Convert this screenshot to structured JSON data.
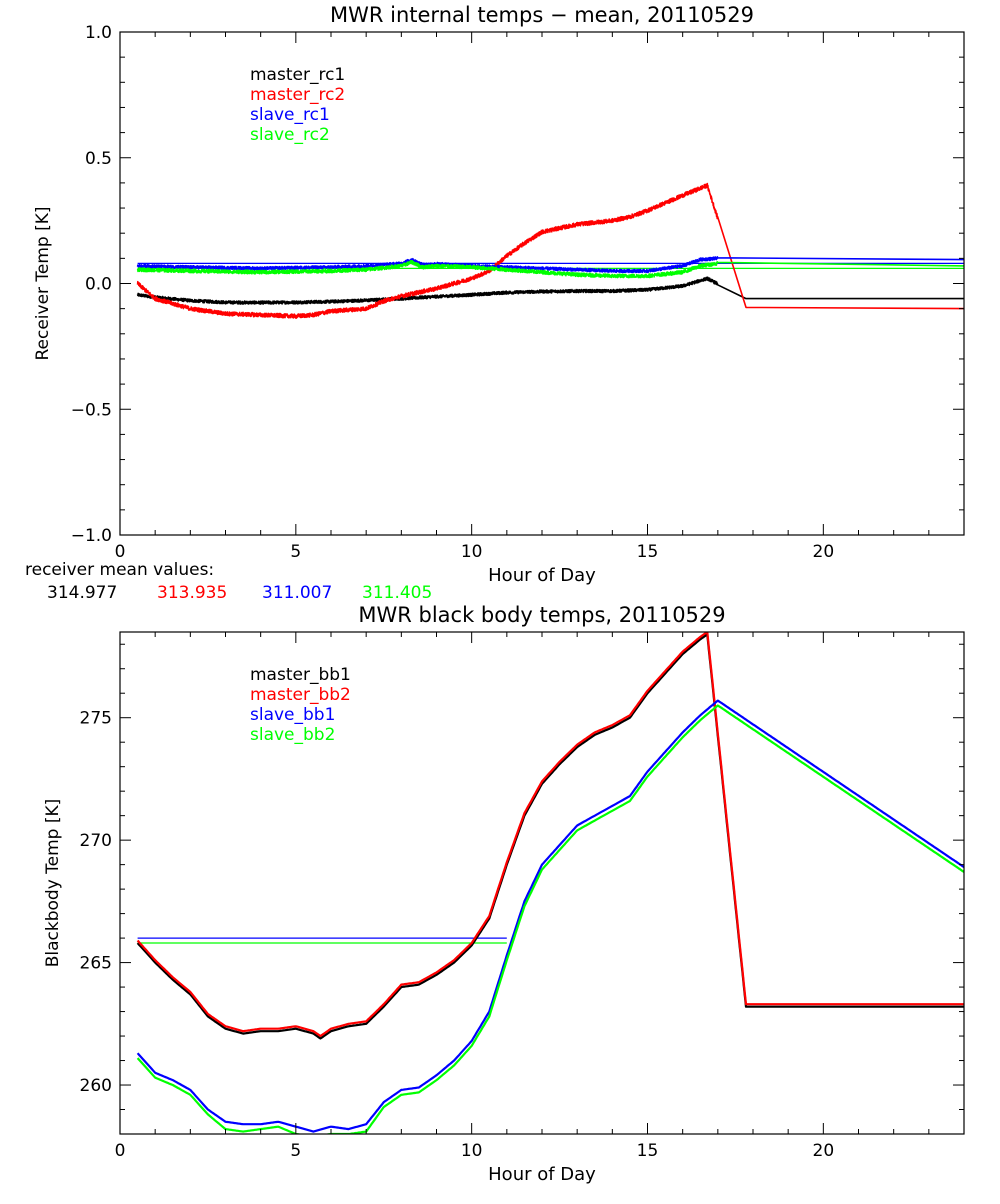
{
  "chart_data": [
    {
      "type": "line",
      "title": "MWR internal temps − mean, 20110529",
      "xlabel": "Hour of Day",
      "ylabel": "Receiver Temp [K]",
      "xlim": [
        0,
        24
      ],
      "ylim": [
        -1.0,
        1.0
      ],
      "xticks": [
        0,
        5,
        10,
        15,
        20
      ],
      "xtick_labels": [
        "0",
        "5",
        "10",
        "15",
        "20"
      ],
      "yticks": [
        -1.0,
        -0.5,
        0.0,
        0.5,
        1.0
      ],
      "ytick_labels": [
        "−1.0",
        "−0.5",
        "0.0",
        "0.5",
        "1.0"
      ],
      "legend_position": "top-left",
      "series": [
        {
          "name": "master_rc1",
          "color": "#000000",
          "noise": 0.006,
          "x": [
            0.5,
            1.0,
            2.0,
            3.0,
            4.0,
            5.0,
            6.0,
            7.0,
            8.0,
            9.0,
            10.0,
            11.0,
            12.0,
            13.0,
            14.0,
            15.0,
            16.0,
            16.7,
            17.8,
            24.0
          ],
          "y": [
            -0.045,
            -0.055,
            -0.068,
            -0.075,
            -0.076,
            -0.075,
            -0.072,
            -0.067,
            -0.06,
            -0.052,
            -0.045,
            -0.036,
            -0.032,
            -0.03,
            -0.03,
            -0.025,
            -0.01,
            0.02,
            -0.06,
            -0.06
          ]
        },
        {
          "name": "master_rc2",
          "color": "#ff0000",
          "noise": 0.008,
          "x": [
            0.5,
            1.0,
            2.0,
            3.0,
            4.0,
            5.0,
            5.5,
            6.0,
            6.5,
            7.0,
            7.5,
            8.0,
            9.0,
            10.0,
            10.5,
            11.0,
            11.5,
            12.0,
            13.0,
            14.0,
            14.5,
            15.0,
            16.0,
            16.7,
            17.8,
            24.0
          ],
          "y": [
            0.0,
            -0.06,
            -0.1,
            -0.12,
            -0.125,
            -0.13,
            -0.125,
            -0.11,
            -0.105,
            -0.1,
            -0.07,
            -0.05,
            -0.02,
            0.02,
            0.05,
            0.11,
            0.16,
            0.205,
            0.235,
            0.25,
            0.265,
            0.29,
            0.35,
            0.39,
            -0.095,
            -0.1
          ]
        },
        {
          "name": "slave_rc1",
          "color": "#0000ff",
          "noise": 0.006,
          "x": [
            0.5,
            2.0,
            4.0,
            6.0,
            7.0,
            8.0,
            8.3,
            8.6,
            9.0,
            10.0,
            11.0,
            12.0,
            13.0,
            14.0,
            15.0,
            16.0,
            16.5,
            17.0,
            24.0
          ],
          "y": [
            0.07,
            0.065,
            0.06,
            0.065,
            0.07,
            0.08,
            0.095,
            0.075,
            0.078,
            0.07,
            0.065,
            0.06,
            0.055,
            0.05,
            0.05,
            0.07,
            0.095,
            0.1,
            0.095
          ]
        },
        {
          "name": "slave_rc2",
          "color": "#00ff00",
          "noise": 0.007,
          "x": [
            0.5,
            2.0,
            4.0,
            6.0,
            7.0,
            8.0,
            8.3,
            8.6,
            9.0,
            10.0,
            11.0,
            12.0,
            13.0,
            14.0,
            15.0,
            16.0,
            16.5,
            17.0,
            24.0
          ],
          "y": [
            0.055,
            0.05,
            0.045,
            0.05,
            0.055,
            0.07,
            0.085,
            0.065,
            0.07,
            0.065,
            0.055,
            0.045,
            0.035,
            0.03,
            0.03,
            0.045,
            0.07,
            0.08,
            0.07
          ]
        }
      ],
      "reference_lines": [
        {
          "color": "#0000ff",
          "x": [
            0.5,
            24.0
          ],
          "y": [
            0.08,
            0.08
          ]
        },
        {
          "color": "#00ff00",
          "x": [
            0.5,
            24.0
          ],
          "y": [
            0.06,
            0.06
          ]
        }
      ],
      "annotation_label": "receiver mean values:",
      "annotation_values": [
        {
          "value": "314.977",
          "color": "#000000"
        },
        {
          "value": "313.935",
          "color": "#ff0000"
        },
        {
          "value": "311.007",
          "color": "#0000ff"
        },
        {
          "value": "311.405",
          "color": "#00ff00"
        }
      ]
    },
    {
      "type": "line",
      "title": "MWR black body temps, 20110529",
      "xlabel": "Hour of Day",
      "ylabel": "Blackbody Temp [K]",
      "xlim": [
        0,
        24
      ],
      "ylim": [
        258,
        278.5
      ],
      "xticks": [
        0,
        5,
        10,
        15,
        20
      ],
      "xtick_labels": [
        "0",
        "5",
        "10",
        "15",
        "20"
      ],
      "yticks": [
        260,
        265,
        270,
        275
      ],
      "ytick_labels": [
        "260",
        "265",
        "270",
        "275"
      ],
      "legend_position": "top-left",
      "series": [
        {
          "name": "master_bb1",
          "color": "#000000",
          "noise": 0,
          "x": [
            0.5,
            1.0,
            1.5,
            2.0,
            2.5,
            3.0,
            3.5,
            4.0,
            4.5,
            5.0,
            5.5,
            5.7,
            6.0,
            6.5,
            7.0,
            7.5,
            8.0,
            8.5,
            9.0,
            9.5,
            10.0,
            10.5,
            11.0,
            11.5,
            12.0,
            12.5,
            13.0,
            13.5,
            14.0,
            14.5,
            15.0,
            15.5,
            16.0,
            16.5,
            16.7,
            17.8,
            24.0
          ],
          "y": [
            265.8,
            265.0,
            264.3,
            263.7,
            262.8,
            262.3,
            262.1,
            262.2,
            262.2,
            262.3,
            262.1,
            261.9,
            262.2,
            262.4,
            262.5,
            263.2,
            264.0,
            264.1,
            264.5,
            265.0,
            265.7,
            266.8,
            269.0,
            271.0,
            272.3,
            273.1,
            273.8,
            274.3,
            274.6,
            275.0,
            276.0,
            276.8,
            277.6,
            278.2,
            278.4,
            263.2,
            263.2
          ]
        },
        {
          "name": "master_bb2",
          "color": "#ff0000",
          "noise": 0,
          "x": [
            0.5,
            1.0,
            1.5,
            2.0,
            2.5,
            3.0,
            3.5,
            4.0,
            4.5,
            5.0,
            5.5,
            5.7,
            6.0,
            6.5,
            7.0,
            7.5,
            8.0,
            8.5,
            9.0,
            9.5,
            10.0,
            10.5,
            11.0,
            11.5,
            12.0,
            12.5,
            13.0,
            13.5,
            14.0,
            14.5,
            15.0,
            15.5,
            16.0,
            16.5,
            16.7,
            17.8,
            24.0
          ],
          "y": [
            265.9,
            265.1,
            264.4,
            263.8,
            262.9,
            262.4,
            262.2,
            262.3,
            262.3,
            262.4,
            262.2,
            262.0,
            262.3,
            262.5,
            262.6,
            263.3,
            264.1,
            264.2,
            264.6,
            265.1,
            265.8,
            266.9,
            269.1,
            271.1,
            272.4,
            273.2,
            273.9,
            274.4,
            274.7,
            275.1,
            276.1,
            276.9,
            277.7,
            278.3,
            278.5,
            263.3,
            263.3
          ]
        },
        {
          "name": "slave_bb1",
          "color": "#0000ff",
          "noise": 0,
          "x": [
            0.5,
            1.0,
            1.5,
            2.0,
            2.5,
            3.0,
            3.5,
            4.0,
            4.5,
            5.0,
            5.5,
            6.0,
            6.5,
            7.0,
            7.5,
            8.0,
            8.5,
            9.0,
            9.5,
            10.0,
            10.5,
            11.0,
            11.5,
            12.0,
            12.5,
            13.0,
            13.5,
            14.0,
            14.5,
            15.0,
            15.5,
            16.0,
            16.5,
            17.0,
            24.0
          ],
          "y": [
            261.3,
            260.5,
            260.2,
            259.8,
            259.0,
            258.5,
            258.4,
            258.4,
            258.5,
            258.3,
            258.1,
            258.3,
            258.2,
            258.4,
            259.3,
            259.8,
            259.9,
            260.4,
            261.0,
            261.8,
            263.0,
            265.3,
            267.5,
            269.0,
            269.8,
            270.6,
            271.0,
            271.4,
            271.8,
            272.8,
            273.6,
            274.4,
            275.1,
            275.7,
            268.9
          ]
        },
        {
          "name": "slave_bb2",
          "color": "#00ff00",
          "noise": 0,
          "x": [
            0.5,
            1.0,
            1.5,
            2.0,
            2.5,
            3.0,
            3.5,
            4.0,
            4.5,
            5.0,
            5.5,
            6.0,
            6.5,
            7.0,
            7.5,
            8.0,
            8.5,
            9.0,
            9.5,
            10.0,
            10.5,
            11.0,
            11.5,
            12.0,
            12.5,
            13.0,
            13.5,
            14.0,
            14.5,
            15.0,
            15.5,
            16.0,
            16.5,
            17.0,
            24.0
          ],
          "y": [
            261.1,
            260.3,
            260.0,
            259.6,
            258.8,
            258.2,
            258.1,
            258.2,
            258.3,
            258.0,
            257.9,
            258.0,
            258.0,
            258.1,
            259.1,
            259.6,
            259.7,
            260.2,
            260.8,
            261.6,
            262.8,
            265.1,
            267.3,
            268.8,
            269.6,
            270.4,
            270.8,
            271.2,
            271.6,
            272.6,
            273.4,
            274.2,
            274.9,
            275.5,
            268.7
          ]
        }
      ],
      "reference_lines": [
        {
          "color": "#0000ff",
          "x": [
            0.5,
            11.0
          ],
          "y": [
            266.0,
            266.0
          ]
        },
        {
          "color": "#00ff00",
          "x": [
            0.5,
            11.0
          ],
          "y": [
            265.8,
            265.8
          ]
        }
      ]
    }
  ]
}
